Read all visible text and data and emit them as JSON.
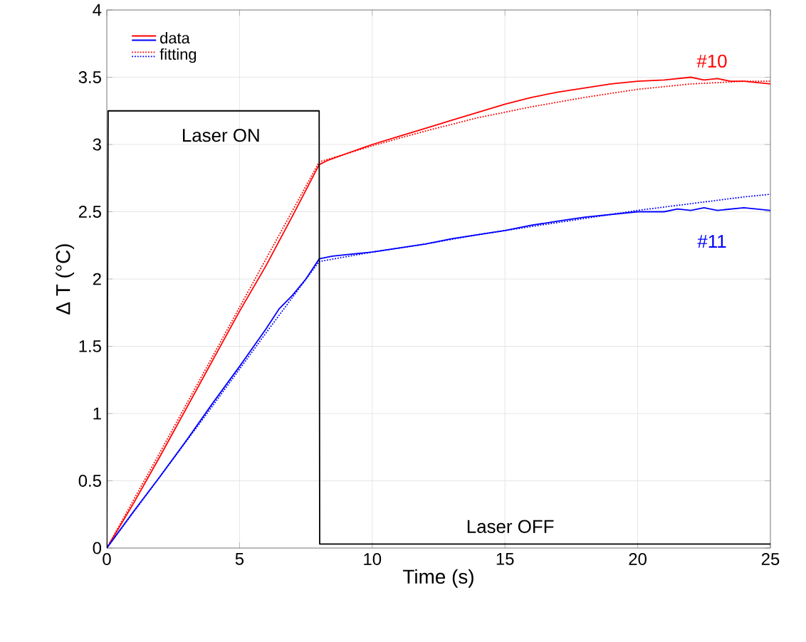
{
  "chart_data": {
    "type": "line",
    "xlabel": "Time (s)",
    "ylabel": "Δ T (°C)",
    "xlim": [
      0,
      25
    ],
    "ylim": [
      0,
      4
    ],
    "xticks": [
      0,
      5,
      10,
      15,
      20,
      25
    ],
    "yticks": [
      0,
      0.5,
      1,
      1.5,
      2,
      2.5,
      3,
      3.5,
      4
    ],
    "grid": true,
    "legend": "top left",
    "series": [
      {
        "name": "data",
        "color": "#ff0000",
        "line_style": "solid",
        "x": [
          0,
          1,
          2,
          3,
          4,
          5,
          6,
          7,
          8,
          8.3,
          9,
          10,
          11,
          12,
          13,
          14,
          15,
          16,
          17,
          18,
          19,
          20,
          21,
          21.5,
          22,
          22.5,
          23,
          23.5,
          24,
          24.5,
          25
        ],
        "values": [
          0,
          0.33,
          0.68,
          1.04,
          1.4,
          1.76,
          2.1,
          2.47,
          2.85,
          2.88,
          2.93,
          3.0,
          3.06,
          3.12,
          3.18,
          3.24,
          3.3,
          3.35,
          3.39,
          3.42,
          3.45,
          3.47,
          3.48,
          3.49,
          3.5,
          3.48,
          3.49,
          3.47,
          3.47,
          3.46,
          3.45
        ]
      },
      {
        "name": "fitting",
        "color": "#ff0000",
        "line_style": "dotted",
        "x": [
          0,
          2,
          4,
          6,
          8,
          9,
          10,
          12,
          14,
          16,
          18,
          20,
          22,
          24,
          25
        ],
        "values": [
          0,
          0.71,
          1.43,
          2.15,
          2.87,
          2.93,
          2.99,
          3.1,
          3.2,
          3.28,
          3.35,
          3.41,
          3.45,
          3.47,
          3.47
        ]
      },
      {
        "color": "#0000ff",
        "line_style": "solid",
        "x": [
          0,
          1,
          2,
          3,
          4,
          5,
          6,
          6.5,
          7,
          7.5,
          8,
          8.5,
          9,
          10,
          11,
          12,
          13,
          14,
          15,
          16,
          17,
          18,
          19,
          20,
          21,
          21.5,
          22,
          22.5,
          23,
          24,
          25
        ],
        "values": [
          0,
          0.27,
          0.53,
          0.8,
          1.08,
          1.35,
          1.63,
          1.78,
          1.88,
          2.0,
          2.15,
          2.17,
          2.18,
          2.2,
          2.23,
          2.26,
          2.3,
          2.33,
          2.36,
          2.4,
          2.43,
          2.46,
          2.48,
          2.5,
          2.5,
          2.52,
          2.51,
          2.53,
          2.51,
          2.53,
          2.51
        ]
      },
      {
        "color": "#0000ff",
        "line_style": "dotted",
        "x": [
          0,
          2,
          4,
          6,
          8,
          10,
          12,
          14,
          16,
          18,
          20,
          22,
          24,
          25
        ],
        "values": [
          0,
          0.53,
          1.06,
          1.6,
          2.13,
          2.2,
          2.26,
          2.33,
          2.39,
          2.45,
          2.51,
          2.56,
          2.61,
          2.63
        ]
      },
      {
        "color": "#000000",
        "line_style": "solid",
        "x": [
          0,
          0.05,
          4,
          8,
          8.02,
          10,
          15,
          20,
          25
        ],
        "values": [
          0,
          3.25,
          3.25,
          3.25,
          0.03,
          0.03,
          0.03,
          0.03,
          0.03
        ]
      }
    ],
    "annotations": [
      "Laser ON",
      "Laser OFF",
      "#10",
      "#11"
    ]
  }
}
